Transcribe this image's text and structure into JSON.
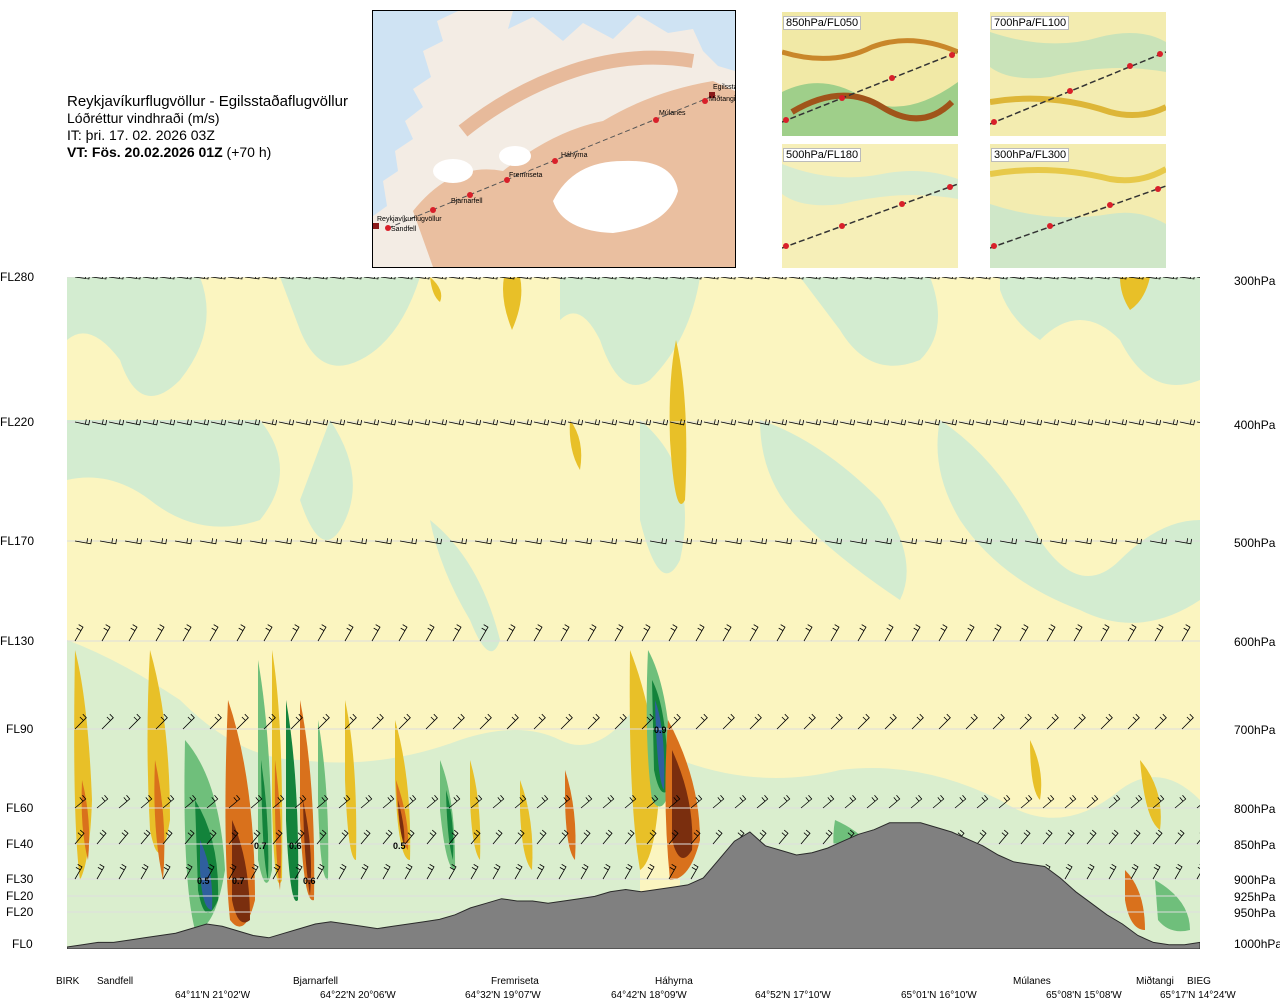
{
  "header": {
    "route": "Reykjavíkurflugvöllur - Egilsstaðaflugvöllur",
    "variable": "Lóðréttur vindhraði (m/s)",
    "issued": "IT: þri. 17. 02. 2026 03Z",
    "valid_bold": "VT: Fös. 20.02.2026 01Z",
    "valid_offset": "(+70 h)"
  },
  "map": {
    "places": [
      "Reykjavíkurflugvöllur",
      "Sandfell",
      "Bjarnarfell",
      "Fremriseta",
      "Háhyrna",
      "Múlanes",
      "Egilsstaðir",
      "Miðtangi"
    ]
  },
  "mini_maps": [
    {
      "label": "850hPa/FL050"
    },
    {
      "label": "700hPa/FL100"
    },
    {
      "label": "500hPa/FL180"
    },
    {
      "label": "300hPa/FL300"
    }
  ],
  "colors": {
    "up_strong": "#7a2e0e",
    "up_mid": "#d9711c",
    "up_low": "#e8c028",
    "up_weak": "#f4efa0",
    "down_weak": "#d3ecd0",
    "down_mid": "#6fbf7b",
    "down_strong": "#13833b",
    "down_max": "#2f5f9e",
    "terrain": "#808080",
    "neutral": "#fbf5c0"
  },
  "chart_data": {
    "type": "heatmap",
    "title": "Lóðréttur vindhraði (m/s)",
    "y_levels": [
      {
        "fl": "FL280",
        "hpa": "300hPa"
      },
      {
        "fl": "FL220",
        "hpa": "400hPa"
      },
      {
        "fl": "FL170",
        "hpa": "500hPa"
      },
      {
        "fl": "FL130",
        "hpa": "600hPa"
      },
      {
        "fl": "FL90",
        "hpa": "700hPa"
      },
      {
        "fl": "FL60",
        "hpa": "800hPa"
      },
      {
        "fl": "FL40",
        "hpa": "850hPa"
      },
      {
        "fl": "FL30",
        "hpa": "900hPa"
      },
      {
        "fl": "FL20",
        "hpa": "925hPa"
      },
      {
        "fl": "FL20",
        "hpa": "950hPa"
      },
      {
        "fl": "FL0",
        "hpa": "1000hPa"
      }
    ],
    "x_sites": [
      "BIRK",
      "Sandfell",
      "Bjarnarfell",
      "Fremriseta",
      "Háhyrna",
      "Múlanes",
      "Miðtangi",
      "BIEG"
    ],
    "x_coords": [
      "64°11'N 21°02'W",
      "64°22'N 20°06'W",
      "64°32'N 19°07'W",
      "64°42'N 18°09'W",
      "64°52'N 17°10'W",
      "65°01'N 16°10'W",
      "65°08'N 15°08'W",
      "65°17'N 14°24'W"
    ],
    "value_labels": [
      "0.5",
      "0.7",
      "0.7",
      "0.6",
      "0.6",
      "0.5",
      "0.9"
    ],
    "terrain": [
      0,
      1,
      2,
      2,
      3,
      4,
      5,
      6,
      8,
      10,
      9,
      7,
      5,
      4,
      6,
      8,
      10,
      11,
      10,
      9,
      8,
      9,
      10,
      11,
      12,
      14,
      17,
      19,
      21,
      20,
      20,
      19,
      20,
      21,
      22,
      24,
      25,
      24,
      25,
      26,
      27,
      30,
      38,
      46,
      50,
      44,
      42,
      40,
      41,
      43,
      46,
      49,
      51,
      54,
      54,
      54,
      52,
      50,
      47,
      44,
      40,
      37,
      36,
      35,
      30,
      24,
      19,
      14,
      10,
      5,
      2,
      1,
      1,
      2
    ]
  }
}
